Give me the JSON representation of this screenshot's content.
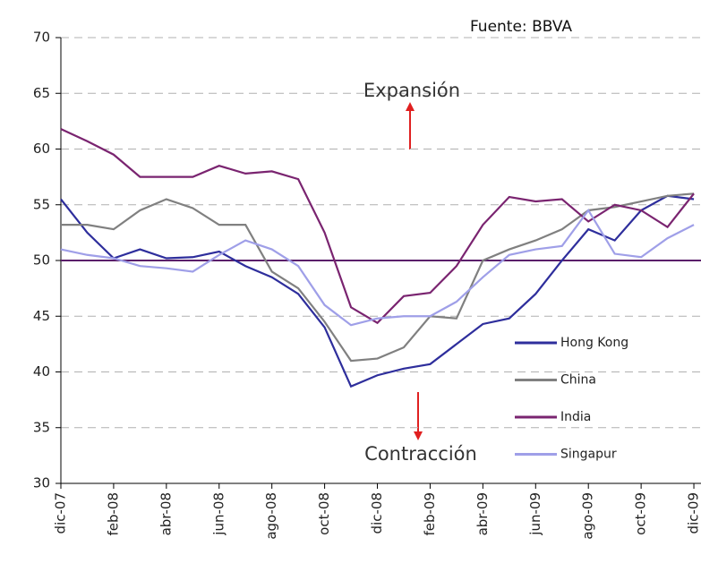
{
  "chart_data": {
    "type": "line",
    "source": "Fuente: BBVA",
    "annotations": [
      "Expansión",
      "Contracción"
    ],
    "categories": [
      "dic-07",
      null,
      "feb-08",
      null,
      "abr-08",
      null,
      "jun-08",
      null,
      "ago-08",
      null,
      "oct-08",
      null,
      "dic-08",
      null,
      "feb-09",
      null,
      "abr-09",
      null,
      "jun-09",
      null,
      "ago-09",
      null,
      "oct-09",
      null,
      "dic-09"
    ],
    "series": [
      {
        "name": "Hong Kong",
        "color": "#2e2e9c",
        "values": [
          55.5,
          52.5,
          50.2,
          51,
          50.2,
          50.3,
          50.8,
          49.5,
          48.5,
          47,
          44,
          38.7,
          39.7,
          40.3,
          40.7,
          42.5,
          44.3,
          44.8,
          47,
          50,
          52.8,
          51.8,
          54.5,
          55.8,
          55.5
        ]
      },
      {
        "name": "China",
        "color": "#808080",
        "values": [
          53.2,
          53.2,
          52.8,
          54.5,
          55.5,
          54.7,
          53.2,
          53.2,
          49,
          47.5,
          44.5,
          41,
          41.2,
          42.2,
          45,
          44.8,
          50,
          51,
          51.8,
          52.8,
          54.5,
          54.8,
          55.3,
          55.8,
          56
        ]
      },
      {
        "name": "India",
        "color": "#7a2470",
        "values": [
          61.8,
          60.7,
          59.5,
          57.5,
          57.5,
          57.5,
          58.5,
          57.8,
          58,
          57.3,
          52.5,
          45.8,
          44.4,
          46.8,
          47.1,
          49.5,
          53.2,
          55.7,
          55.3,
          55.5,
          53.5,
          55,
          54.5,
          53,
          56
        ]
      },
      {
        "name": "Singapur",
        "color": "#9f9fe8",
        "values": [
          51,
          50.5,
          50.2,
          49.5,
          49.3,
          49,
          50.5,
          51.8,
          51,
          49.5,
          46,
          44.2,
          44.8,
          45,
          45,
          46.3,
          48.5,
          50.5,
          51,
          51.3,
          54.5,
          50.6,
          50.3,
          52,
          53.2
        ]
      }
    ],
    "reference_line": 50,
    "reference_color": "#5b1f6b",
    "ylim": [
      30,
      70
    ],
    "yticks": [
      30,
      35,
      40,
      45,
      50,
      55,
      60,
      65,
      70
    ],
    "grid": true,
    "legend": "lower right"
  }
}
